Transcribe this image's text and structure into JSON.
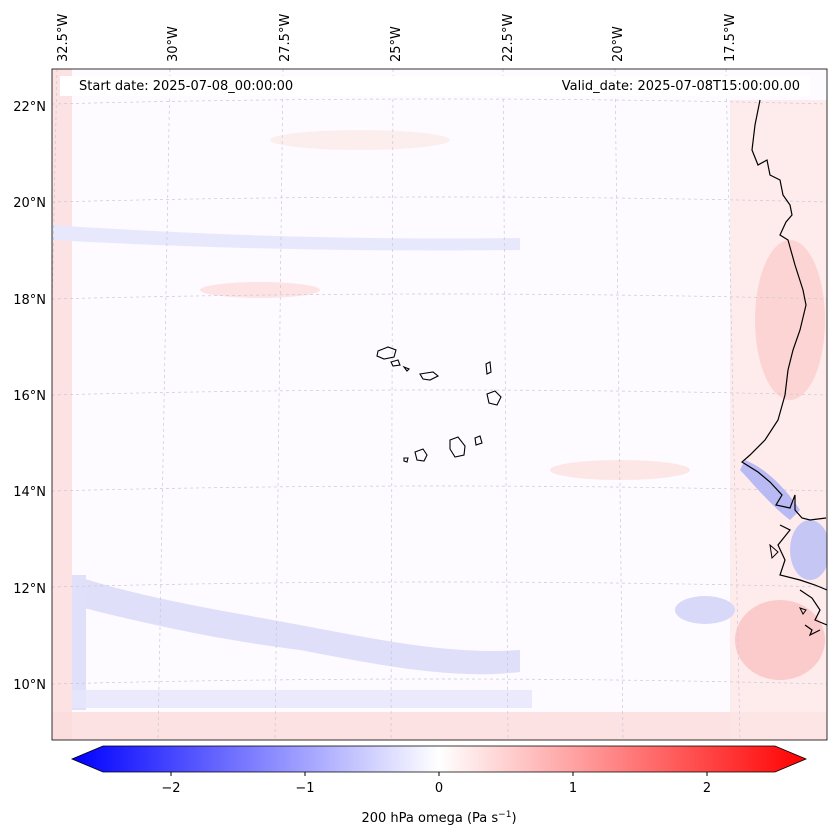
{
  "header": {
    "start_date": "Start date: 2025-07-08_00:00:00",
    "valid_date": "Valid_date: 2025-07-08T15:00:00.00"
  },
  "longitude_labels": [
    "32.5°W",
    "30°W",
    "27.5°W",
    "25°W",
    "22.5°W",
    "20°W",
    "17.5°W"
  ],
  "latitude_labels": [
    "22°N",
    "20°N",
    "18°N",
    "16°N",
    "14°N",
    "12°N",
    "10°N"
  ],
  "colorbar": {
    "label": "200 hPa omega (Pa s",
    "label_sup": "−1",
    "label_close": ")",
    "ticks": [
      "−2",
      "−1",
      "0",
      "1",
      "2"
    ],
    "colors": {
      "min": "#0000ff",
      "mid": "#ffffff",
      "max": "#ff0000"
    },
    "range": [
      -2.6,
      2.6
    ]
  },
  "map": {
    "field": "200 hPa omega",
    "colormap": "bwr",
    "grid": "dashed",
    "coastline_color": "#000000",
    "features": [
      "Cape Verde Islands",
      "West African coast"
    ]
  }
}
